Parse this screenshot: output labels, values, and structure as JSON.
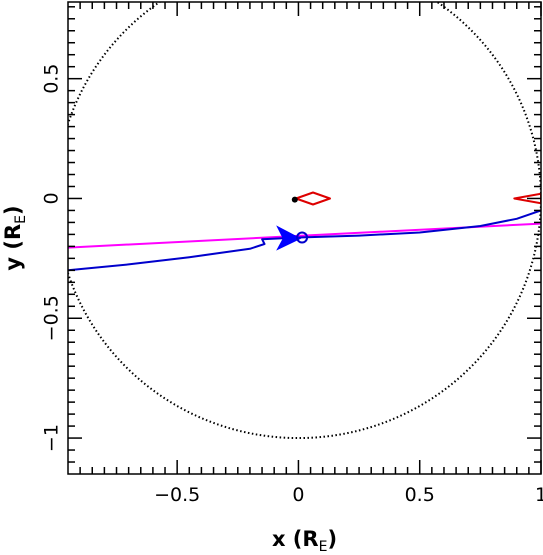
{
  "chart_data": {
    "type": "line",
    "title": "",
    "xlabel": {
      "main": "x (R",
      "sub": "E",
      "close": ")"
    },
    "ylabel": {
      "main": "y (R",
      "sub": "E",
      "close": ")"
    },
    "xlim": [
      -0.95,
      1.0
    ],
    "ylim": [
      -1.15,
      0.82
    ],
    "xticks": [
      {
        "value": -0.5,
        "label": "−0.5"
      },
      {
        "value": 0,
        "label": "0"
      },
      {
        "value": 0.5,
        "label": "0.5"
      },
      {
        "value": 1,
        "label": "1"
      }
    ],
    "yticks": [
      {
        "value": -1,
        "label": "−1"
      },
      {
        "value": -0.5,
        "label": "−0.5"
      },
      {
        "value": 0,
        "label": "0"
      },
      {
        "value": 0.5,
        "label": "0.5"
      }
    ],
    "grid": false,
    "einstein_ring": {
      "center": [
        0,
        0
      ],
      "radius": 1.0,
      "color": "#000000",
      "style": "dotted"
    },
    "source_trajectory": {
      "color": "#ff00ff",
      "points": [
        [
          -0.95,
          -0.205
        ],
        [
          1.0,
          -0.105
        ]
      ]
    },
    "caustic_path": {
      "color": "#0000cc",
      "points": [
        [
          1.0,
          -0.05
        ],
        [
          0.9,
          -0.085
        ],
        [
          0.75,
          -0.115
        ],
        [
          0.5,
          -0.142
        ],
        [
          0.25,
          -0.155
        ],
        [
          0.0,
          -0.163
        ],
        [
          -0.15,
          -0.17
        ],
        [
          -0.14,
          -0.19
        ],
        [
          -0.2,
          -0.21
        ],
        [
          -0.45,
          -0.245
        ],
        [
          -0.7,
          -0.275
        ],
        [
          -0.95,
          -0.3
        ]
      ]
    },
    "source_position": {
      "x": 0.015,
      "y": -0.163,
      "color": "#0000cc"
    },
    "direction_arrow": {
      "x": -0.05,
      "y": -0.163,
      "color": "#0000ff"
    },
    "lens_position": {
      "x": -0.015,
      "y": -0.005,
      "color": "#000000"
    },
    "caustics": [
      {
        "name": "central-caustic",
        "color": "#dd0000",
        "points": [
          [
            -0.01,
            0.0
          ],
          [
            0.06,
            0.025
          ],
          [
            0.13,
            0.0
          ],
          [
            0.06,
            -0.025
          ]
        ]
      },
      {
        "name": "planetary-caustic",
        "color": "#dd0000",
        "points": [
          [
            1.0,
            0.02
          ],
          [
            0.89,
            0.0
          ],
          [
            1.0,
            -0.02
          ]
        ]
      }
    ]
  }
}
